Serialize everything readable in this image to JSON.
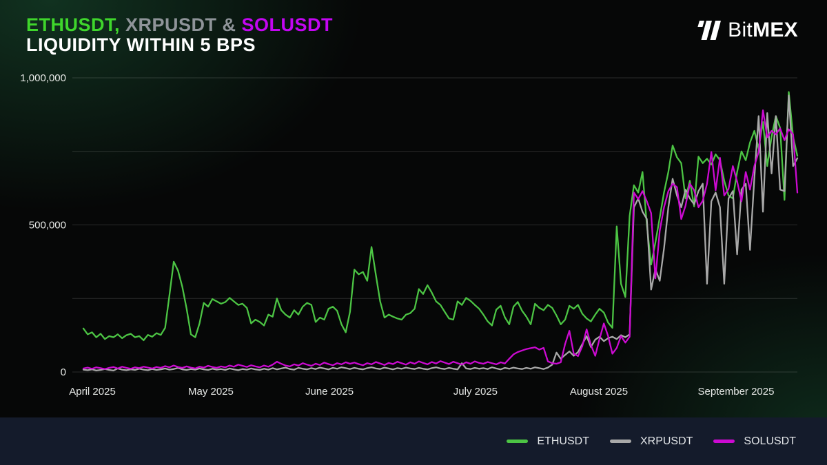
{
  "header": {
    "title_parts": [
      {
        "text": "ETHUSDT,",
        "color": "#3fd62c"
      },
      {
        "text": " XRPUSDT &",
        "color": "#8f9499"
      },
      {
        "text": " SOLUSDT",
        "color": "#c306f2"
      }
    ],
    "title_line2": "LIQUIDITY WITHIN 5 BPS",
    "logo": {
      "text_regular": "Bit",
      "text_bold": "MEX"
    }
  },
  "legend": {
    "items": [
      {
        "label": "ETHUSDT",
        "color": "#4cc444"
      },
      {
        "label": "XRPUSDT",
        "color": "#a9a9a9"
      },
      {
        "label": "SOLUSDT",
        "color": "#cc0ad2"
      }
    ]
  },
  "chart_data": {
    "type": "line",
    "title": "ETHUSDT, XRPUSDT & SOLUSDT LIQUIDITY WITHIN 5 BPS",
    "ylabel": "",
    "xlabel": "",
    "ylim": [
      0,
      1000000
    ],
    "grid": true,
    "legend_position": "bottom-right",
    "gridline_values": [
      0,
      250000,
      500000,
      750000,
      1000000
    ],
    "y_ticks": [
      {
        "value": 0,
        "label": "0"
      },
      {
        "value": 500000,
        "label": "500,000"
      },
      {
        "value": 1000000,
        "label": "1,000,000"
      }
    ],
    "x_tick_labels": [
      {
        "label": "April 2025",
        "pos": 0.0276
      },
      {
        "label": "May 2025",
        "pos": 0.191
      },
      {
        "label": "June 2025",
        "pos": 0.3546
      },
      {
        "label": "July 2025",
        "pos": 0.556
      },
      {
        "label": "August 2025",
        "pos": 0.7262
      },
      {
        "label": "September 2025",
        "pos": 0.9154
      }
    ],
    "x_range_note": "daily data, late March 2025 through mid September 2025",
    "series": [
      {
        "name": "ETHUSDT",
        "color": "#4cc444",
        "values": [
          148000,
          128000,
          135000,
          118000,
          130000,
          112000,
          122000,
          118000,
          128000,
          115000,
          125000,
          130000,
          118000,
          122000,
          108000,
          126000,
          120000,
          132000,
          126000,
          150000,
          260000,
          375000,
          345000,
          290000,
          215000,
          128000,
          118000,
          165000,
          235000,
          222000,
          248000,
          240000,
          232000,
          238000,
          252000,
          240000,
          228000,
          232000,
          218000,
          165000,
          178000,
          170000,
          158000,
          195000,
          188000,
          250000,
          210000,
          195000,
          185000,
          210000,
          195000,
          222000,
          235000,
          228000,
          170000,
          185000,
          178000,
          215000,
          222000,
          208000,
          162000,
          135000,
          205000,
          348000,
          332000,
          340000,
          310000,
          425000,
          330000,
          240000,
          185000,
          195000,
          188000,
          182000,
          178000,
          195000,
          200000,
          215000,
          282000,
          265000,
          295000,
          270000,
          240000,
          228000,
          205000,
          182000,
          178000,
          240000,
          228000,
          252000,
          242000,
          228000,
          215000,
          195000,
          172000,
          158000,
          212000,
          225000,
          186000,
          162000,
          222000,
          238000,
          208000,
          188000,
          162000,
          232000,
          218000,
          210000,
          228000,
          218000,
          192000,
          162000,
          178000,
          225000,
          215000,
          228000,
          198000,
          182000,
          172000,
          195000,
          215000,
          202000,
          168000,
          150000,
          495000,
          300000,
          255000,
          530000,
          635000,
          610000,
          680000,
          500000,
          365000,
          440000,
          525000,
          610000,
          680000,
          770000,
          730000,
          710000,
          590000,
          650000,
          563000,
          732000,
          710000,
          725000,
          705000,
          740000,
          720000,
          650000,
          600000,
          590000,
          680000,
          750000,
          720000,
          780000,
          820000,
          760000,
          850000,
          700000,
          800000,
          870000,
          830000,
          585000,
          952000,
          800000,
          735000
        ]
      },
      {
        "name": "XRPUSDT",
        "color": "#a9a9a9",
        "values": [
          8000,
          6000,
          9000,
          5000,
          7000,
          10000,
          7000,
          5000,
          12000,
          8000,
          6000,
          9000,
          7000,
          11000,
          8000,
          6000,
          10000,
          7000,
          9000,
          12000,
          8000,
          10000,
          14000,
          9000,
          7000,
          10000,
          8000,
          12000,
          9000,
          7000,
          11000,
          8000,
          10000,
          7000,
          12000,
          9000,
          6000,
          10000,
          8000,
          12000,
          9000,
          7000,
          11000,
          8000,
          13000,
          9000,
          12000,
          15000,
          10000,
          8000,
          14000,
          11000,
          9000,
          13000,
          10000,
          15000,
          12000,
          9000,
          14000,
          11000,
          16000,
          13000,
          10000,
          14000,
          11000,
          9000,
          13000,
          16000,
          12000,
          10000,
          15000,
          12000,
          9000,
          13000,
          11000,
          15000,
          12000,
          10000,
          14000,
          11000,
          9000,
          13000,
          16000,
          12000,
          10000,
          14000,
          11000,
          9000,
          30000,
          12000,
          10000,
          14000,
          11000,
          13000,
          10000,
          16000,
          12000,
          9000,
          14000,
          11000,
          15000,
          12000,
          10000,
          14000,
          11000,
          16000,
          13000,
          10000,
          15000,
          25000,
          66000,
          45000,
          58000,
          70000,
          55000,
          68000,
          95000,
          122000,
          85000,
          110000,
          120000,
          105000,
          115000,
          120000,
          112000,
          125000,
          118000,
          128000,
          560000,
          590000,
          545000,
          520000,
          280000,
          350000,
          310000,
          420000,
          560000,
          657000,
          600000,
          560000,
          620000,
          590000,
          570000,
          615000,
          640000,
          300000,
          580000,
          610000,
          560000,
          300000,
          590000,
          615000,
          400000,
          620000,
          640000,
          415000,
          660000,
          870000,
          545000,
          880000,
          675000,
          870000,
          620000,
          615000,
          940000,
          700000,
          727000
        ]
      },
      {
        "name": "SOLUSDT",
        "color": "#cc0ad2",
        "values": [
          12000,
          15000,
          11000,
          16000,
          13000,
          10000,
          14000,
          17000,
          12000,
          18000,
          14000,
          11000,
          16000,
          13000,
          18000,
          15000,
          12000,
          17000,
          14000,
          20000,
          16000,
          22000,
          17000,
          14000,
          19000,
          15000,
          12000,
          18000,
          15000,
          21000,
          17000,
          14000,
          19000,
          16000,
          22000,
          18000,
          25000,
          21000,
          17000,
          23000,
          19000,
          16000,
          22000,
          18000,
          25000,
          35000,
          28000,
          22000,
          19000,
          26000,
          22000,
          30000,
          25000,
          21000,
          28000,
          24000,
          32000,
          27000,
          23000,
          30000,
          26000,
          33000,
          28000,
          32000,
          27000,
          23000,
          30000,
          26000,
          34000,
          29000,
          24000,
          31000,
          27000,
          35000,
          30000,
          25000,
          33000,
          28000,
          36000,
          31000,
          26000,
          34000,
          29000,
          37000,
          32000,
          27000,
          35000,
          30000,
          25000,
          33000,
          28000,
          36000,
          31000,
          28000,
          34000,
          30000,
          26000,
          33000,
          29000,
          45000,
          60000,
          68000,
          73000,
          78000,
          81000,
          84000,
          76000,
          82000,
          36000,
          30000,
          28000,
          33000,
          95000,
          140000,
          62000,
          54000,
          88000,
          145000,
          92000,
          55000,
          112000,
          165000,
          122000,
          62000,
          82000,
          122000,
          100000,
          120000,
          610000,
          588000,
          615000,
          580000,
          540000,
          318000,
          480000,
          560000,
          615000,
          640000,
          628000,
          520000,
          565000,
          640000,
          618000,
          560000,
          582000,
          640000,
          748000,
          618000,
          728000,
          600000,
          622000,
          700000,
          648000,
          580000,
          680000,
          620000,
          700000,
          748000,
          890000,
          798000,
          820000,
          808000,
          828000,
          788000,
          825000,
          808000,
          610000
        ]
      }
    ]
  }
}
